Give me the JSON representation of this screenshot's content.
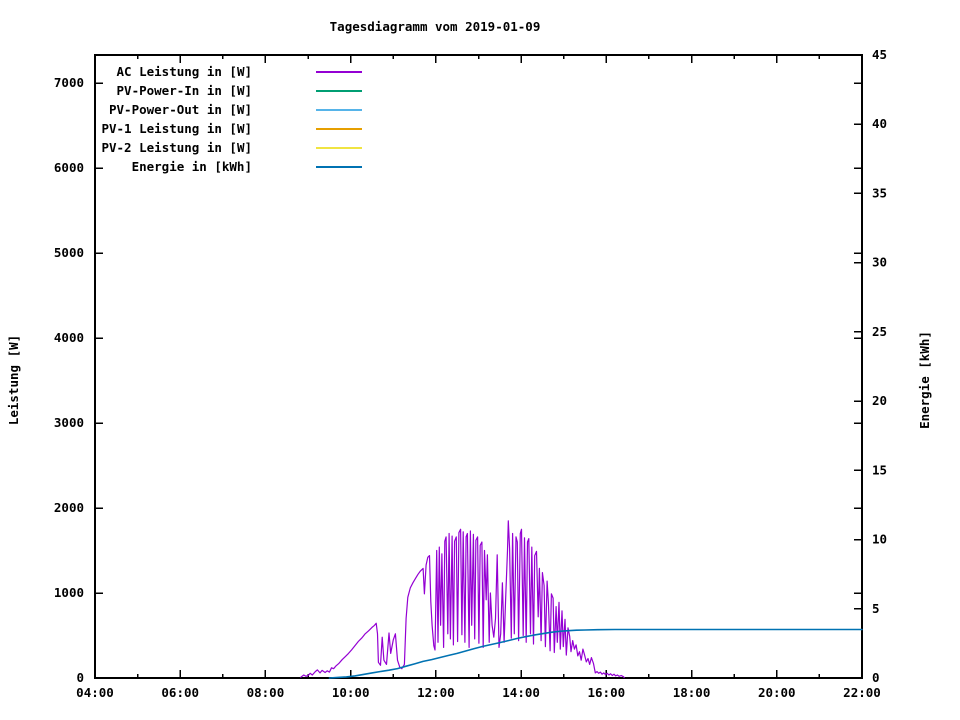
{
  "chart_data": {
    "type": "line",
    "title": "Tagesdiagramm vom 2019-01-09",
    "grid": false,
    "legend_position": "top-left-inside",
    "x_axis": {
      "range": [
        4,
        22
      ],
      "major_ticks": [
        {
          "hour": 4,
          "label": "04:00"
        },
        {
          "hour": 6,
          "label": "06:00"
        },
        {
          "hour": 8,
          "label": "08:00"
        },
        {
          "hour": 10,
          "label": "10:00"
        },
        {
          "hour": 12,
          "label": "12:00"
        },
        {
          "hour": 14,
          "label": "14:00"
        },
        {
          "hour": 16,
          "label": "16:00"
        },
        {
          "hour": 18,
          "label": "18:00"
        },
        {
          "hour": 20,
          "label": "20:00"
        },
        {
          "hour": 22,
          "label": "22:00"
        }
      ],
      "minor_hours": [
        5,
        7,
        9,
        11,
        13,
        15,
        17,
        19,
        21
      ]
    },
    "y_left": {
      "label": "Leistung [W]",
      "range": [
        0,
        7330
      ],
      "tick_values": [
        0,
        1000,
        2000,
        3000,
        4000,
        5000,
        6000,
        7000
      ]
    },
    "y_right": {
      "label": "Energie [kWh]",
      "range": [
        0,
        45
      ],
      "tick_values": [
        0,
        5,
        10,
        15,
        20,
        25,
        30,
        35,
        40,
        45
      ]
    },
    "series": [
      {
        "name": "AC Leistung in [W]",
        "color": "#9400D3",
        "axis": "left",
        "width": 1.2,
        "points": [
          [
            8.83,
            10
          ],
          [
            8.9,
            35
          ],
          [
            8.95,
            20
          ],
          [
            9.0,
            30
          ],
          [
            9.05,
            55
          ],
          [
            9.1,
            35
          ],
          [
            9.17,
            75
          ],
          [
            9.22,
            95
          ],
          [
            9.28,
            60
          ],
          [
            9.33,
            90
          ],
          [
            9.4,
            65
          ],
          [
            9.45,
            85
          ],
          [
            9.5,
            70
          ],
          [
            9.55,
            120
          ],
          [
            9.6,
            110
          ],
          [
            9.65,
            140
          ],
          [
            9.72,
            170
          ],
          [
            9.8,
            215
          ],
          [
            9.88,
            255
          ],
          [
            9.95,
            290
          ],
          [
            10.02,
            330
          ],
          [
            10.1,
            380
          ],
          [
            10.18,
            430
          ],
          [
            10.26,
            470
          ],
          [
            10.34,
            520
          ],
          [
            10.42,
            555
          ],
          [
            10.5,
            595
          ],
          [
            10.55,
            615
          ],
          [
            10.6,
            645
          ],
          [
            10.63,
            520
          ],
          [
            10.65,
            185
          ],
          [
            10.7,
            150
          ],
          [
            10.74,
            480
          ],
          [
            10.78,
            210
          ],
          [
            10.84,
            160
          ],
          [
            10.9,
            530
          ],
          [
            10.94,
            290
          ],
          [
            11.0,
            450
          ],
          [
            11.05,
            520
          ],
          [
            11.1,
            210
          ],
          [
            11.15,
            130
          ],
          [
            11.2,
            110
          ],
          [
            11.26,
            160
          ],
          [
            11.3,
            700
          ],
          [
            11.34,
            950
          ],
          [
            11.4,
            1060
          ],
          [
            11.46,
            1120
          ],
          [
            11.52,
            1170
          ],
          [
            11.58,
            1220
          ],
          [
            11.64,
            1260
          ],
          [
            11.7,
            1290
          ],
          [
            11.73,
            990
          ],
          [
            11.77,
            1330
          ],
          [
            11.81,
            1420
          ],
          [
            11.85,
            1440
          ],
          [
            11.88,
            900
          ],
          [
            11.91,
            620
          ],
          [
            11.95,
            380
          ],
          [
            11.98,
            330
          ],
          [
            12.02,
            1500
          ],
          [
            12.05,
            420
          ],
          [
            12.08,
            1540
          ],
          [
            12.11,
            620
          ],
          [
            12.14,
            1460
          ],
          [
            12.18,
            360
          ],
          [
            12.21,
            1610
          ],
          [
            12.24,
            1660
          ],
          [
            12.28,
            520
          ],
          [
            12.31,
            1700
          ],
          [
            12.34,
            460
          ],
          [
            12.38,
            1670
          ],
          [
            12.41,
            390
          ],
          [
            12.44,
            1610
          ],
          [
            12.48,
            1660
          ],
          [
            12.51,
            430
          ],
          [
            12.54,
            1710
          ],
          [
            12.58,
            1750
          ],
          [
            12.61,
            510
          ],
          [
            12.64,
            1720
          ],
          [
            12.68,
            420
          ],
          [
            12.71,
            1660
          ],
          [
            12.74,
            1700
          ],
          [
            12.78,
            360
          ],
          [
            12.81,
            1730
          ],
          [
            12.84,
            620
          ],
          [
            12.88,
            1690
          ],
          [
            12.91,
            460
          ],
          [
            12.94,
            1620
          ],
          [
            12.98,
            1660
          ],
          [
            13.01,
            410
          ],
          [
            13.04,
            1560
          ],
          [
            13.08,
            1600
          ],
          [
            13.11,
            360
          ],
          [
            13.14,
            1500
          ],
          [
            13.18,
            920
          ],
          [
            13.21,
            1450
          ],
          [
            13.25,
            420
          ],
          [
            13.28,
            1000
          ],
          [
            13.32,
            620
          ],
          [
            13.36,
            480
          ],
          [
            13.4,
            700
          ],
          [
            13.44,
            1450
          ],
          [
            13.48,
            360
          ],
          [
            13.52,
            520
          ],
          [
            13.56,
            1120
          ],
          [
            13.6,
            420
          ],
          [
            13.64,
            980
          ],
          [
            13.68,
            1500
          ],
          [
            13.7,
            1850
          ],
          [
            13.73,
            1520
          ],
          [
            13.77,
            470
          ],
          [
            13.8,
            1700
          ],
          [
            13.84,
            520
          ],
          [
            13.88,
            1660
          ],
          [
            13.91,
            1600
          ],
          [
            13.94,
            440
          ],
          [
            13.98,
            1700
          ],
          [
            14.01,
            1750
          ],
          [
            14.05,
            500
          ],
          [
            14.08,
            1650
          ],
          [
            14.12,
            420
          ],
          [
            14.15,
            1600
          ],
          [
            14.18,
            1640
          ],
          [
            14.22,
            520
          ],
          [
            14.25,
            1540
          ],
          [
            14.29,
            400
          ],
          [
            14.32,
            1440
          ],
          [
            14.36,
            1490
          ],
          [
            14.4,
            720
          ],
          [
            14.43,
            1290
          ],
          [
            14.47,
            440
          ],
          [
            14.5,
            1240
          ],
          [
            14.54,
            1090
          ],
          [
            14.57,
            370
          ],
          [
            14.61,
            1140
          ],
          [
            14.64,
            890
          ],
          [
            14.68,
            320
          ],
          [
            14.71,
            990
          ],
          [
            14.75,
            940
          ],
          [
            14.78,
            300
          ],
          [
            14.82,
            840
          ],
          [
            14.85,
            420
          ],
          [
            14.89,
            890
          ],
          [
            14.92,
            340
          ],
          [
            14.96,
            790
          ],
          [
            14.99,
            370
          ],
          [
            15.03,
            690
          ],
          [
            15.06,
            270
          ],
          [
            15.1,
            590
          ],
          [
            15.14,
            490
          ],
          [
            15.17,
            310
          ],
          [
            15.21,
            440
          ],
          [
            15.25,
            340
          ],
          [
            15.29,
            390
          ],
          [
            15.33,
            260
          ],
          [
            15.37,
            310
          ],
          [
            15.41,
            210
          ],
          [
            15.45,
            340
          ],
          [
            15.49,
            270
          ],
          [
            15.53,
            190
          ],
          [
            15.57,
            230
          ],
          [
            15.61,
            160
          ],
          [
            15.65,
            240
          ],
          [
            15.7,
            170
          ],
          [
            15.74,
            60
          ],
          [
            15.78,
            75
          ],
          [
            15.82,
            55
          ],
          [
            15.86,
            70
          ],
          [
            15.9,
            45
          ],
          [
            15.94,
            60
          ],
          [
            15.98,
            40
          ],
          [
            16.02,
            55
          ],
          [
            16.06,
            35
          ],
          [
            16.1,
            50
          ],
          [
            16.14,
            30
          ],
          [
            16.18,
            45
          ],
          [
            16.22,
            25
          ],
          [
            16.26,
            35
          ],
          [
            16.3,
            20
          ],
          [
            16.35,
            30
          ],
          [
            16.4,
            15
          ],
          [
            16.42,
            5
          ]
        ]
      },
      {
        "name": "PV-Power-In in [W]",
        "color": "#009E73",
        "axis": "left",
        "width": 1.2,
        "points": []
      },
      {
        "name": "PV-Power-Out in [W]",
        "color": "#56B4E9",
        "axis": "left",
        "width": 1.2,
        "points": []
      },
      {
        "name": "PV-1 Leistung in [W]",
        "color": "#E69F00",
        "axis": "left",
        "width": 1.2,
        "points": []
      },
      {
        "name": "PV-2 Leistung in [W]",
        "color": "#F0E442",
        "axis": "left",
        "width": 1.2,
        "points": []
      },
      {
        "name": "Energie in [kWh]",
        "color": "#0072B2",
        "axis": "right",
        "width": 1.6,
        "points": [
          [
            9.5,
            0.0
          ],
          [
            9.7,
            0.04
          ],
          [
            9.9,
            0.08
          ],
          [
            10.1,
            0.15
          ],
          [
            10.3,
            0.26
          ],
          [
            10.5,
            0.37
          ],
          [
            10.7,
            0.47
          ],
          [
            10.9,
            0.56
          ],
          [
            11.1,
            0.68
          ],
          [
            11.3,
            0.85
          ],
          [
            11.5,
            1.02
          ],
          [
            11.7,
            1.2
          ],
          [
            11.9,
            1.33
          ],
          [
            12.1,
            1.48
          ],
          [
            12.3,
            1.63
          ],
          [
            12.5,
            1.78
          ],
          [
            12.7,
            1.95
          ],
          [
            12.9,
            2.12
          ],
          [
            13.1,
            2.28
          ],
          [
            13.3,
            2.42
          ],
          [
            13.5,
            2.56
          ],
          [
            13.7,
            2.7
          ],
          [
            13.9,
            2.85
          ],
          [
            14.1,
            2.98
          ],
          [
            14.3,
            3.1
          ],
          [
            14.5,
            3.2
          ],
          [
            14.7,
            3.3
          ],
          [
            14.9,
            3.37
          ],
          [
            15.1,
            3.42
          ],
          [
            15.3,
            3.45
          ],
          [
            15.5,
            3.47
          ],
          [
            15.8,
            3.49
          ],
          [
            16.2,
            3.5
          ],
          [
            22.0,
            3.5
          ]
        ]
      }
    ]
  }
}
